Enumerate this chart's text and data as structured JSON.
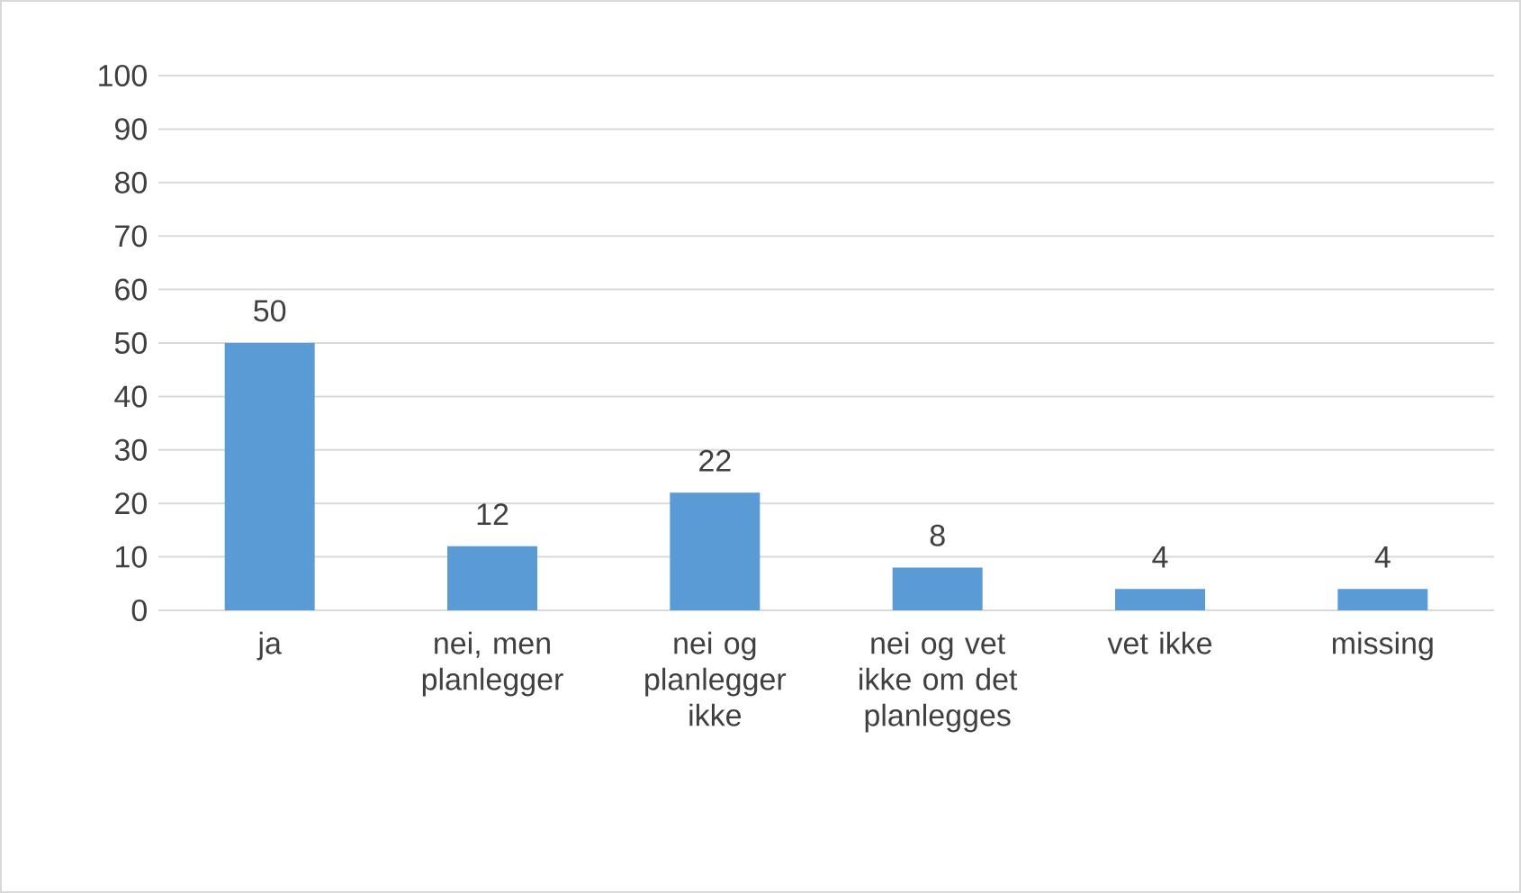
{
  "chart_data": {
    "type": "bar",
    "categories": [
      "ja",
      "nei, men planlegger",
      "nei og planlegger ikke",
      "nei og vet ikke om det planlegges",
      "vet ikke",
      "missing"
    ],
    "values": [
      50,
      12,
      22,
      8,
      4,
      4
    ],
    "color": "#5b9bd5",
    "ylim": [
      0,
      100
    ],
    "yticks": [
      0,
      10,
      20,
      30,
      40,
      50,
      60,
      70,
      80,
      90,
      100
    ],
    "grid": "y",
    "data_labels": true
  }
}
